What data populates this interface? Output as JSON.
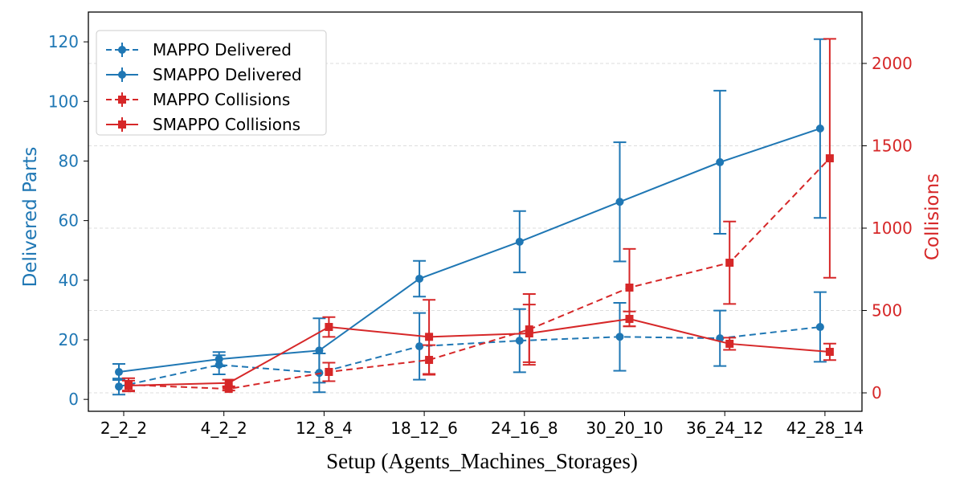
{
  "chart_data": {
    "type": "line",
    "xlabel": "Setup (Agents_Machines_Storages)",
    "ylabel_left": "Delivered Parts",
    "ylabel_right": "Collisions",
    "categories": [
      "2_2_2",
      "4_2_2",
      "12_8_4",
      "18_12_6",
      "24_16_8",
      "30_20_10",
      "36_24_12",
      "42_28_14"
    ],
    "ylim_left": [
      -4,
      130
    ],
    "ylim_right": [
      -112,
      2312
    ],
    "yticks_left": [
      0,
      20,
      40,
      60,
      80,
      100,
      120
    ],
    "yticks_right": [
      0,
      500,
      1000,
      1500,
      2000
    ],
    "grid": "horizontal dashed",
    "legend_placement": "top-left",
    "colors": {
      "delivered": "#1f77b4",
      "collisions": "#d62728"
    },
    "series": [
      {
        "name": "MAPPO Delivered",
        "axis": "left",
        "style": "dashed",
        "marker": "circle",
        "color": "#1f77b4",
        "values": [
          4.3,
          11.6,
          8.9,
          17.8,
          19.7,
          21.0,
          20.5,
          24.3
        ],
        "err": [
          2.7,
          3.2,
          6.5,
          11.2,
          10.6,
          11.4,
          9.3,
          11.7
        ]
      },
      {
        "name": "SMAPPO Delivered",
        "axis": "left",
        "style": "solid",
        "marker": "circle",
        "color": "#1f77b4",
        "values": [
          9.2,
          13.5,
          16.4,
          40.5,
          52.9,
          66.3,
          79.6,
          90.9
        ],
        "err": [
          2.7,
          2.4,
          10.8,
          6.0,
          10.3,
          20.0,
          24.0,
          30.0
        ]
      },
      {
        "name": "MAPPO Collisions",
        "axis": "right",
        "style": "dashed",
        "marker": "square",
        "color": "#d62728",
        "values": [
          49,
          24,
          127,
          200,
          385,
          639,
          790,
          1424
        ],
        "err": [
          40,
          10,
          56,
          90,
          215,
          235,
          250,
          725
        ]
      },
      {
        "name": "SMAPPO Collisions",
        "axis": "right",
        "style": "solid",
        "marker": "square",
        "color": "#d62728",
        "values": [
          44,
          60,
          400,
          340,
          361,
          449,
          298,
          249
        ],
        "err": [
          30,
          20,
          60,
          225,
          175,
          45,
          37,
          50
        ]
      }
    ]
  }
}
